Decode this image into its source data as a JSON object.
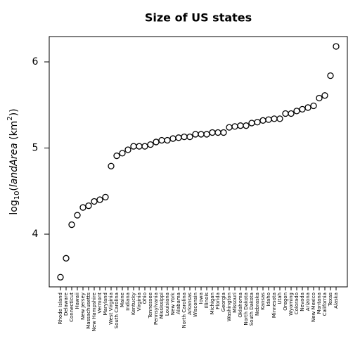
{
  "chart_data": {
    "type": "scatter",
    "title": "Size of US states",
    "y_label": [
      "log",
      "10",
      "(",
      "landArea",
      " (km",
      "2",
      "))"
    ],
    "categories": [
      "Rhode Island",
      "Delaware",
      "Connecticut",
      "Hawaii",
      "New Jersey",
      "Massachusetts",
      "New Hampshire",
      "Vermont",
      "Maryland",
      "West Virginia",
      "South Carolina",
      "Maine",
      "Indiana",
      "Kentucky",
      "Virginia",
      "Ohio",
      "Tennessee",
      "Pennsylvania",
      "Mississippi",
      "Louisiana",
      "New York",
      "Alabama",
      "North Carolina",
      "Arkansas",
      "Wisconsin",
      "Iowa",
      "Illinois",
      "Michigan",
      "Florida",
      "Georgia",
      "Washington",
      "Missouri",
      "Oklahoma",
      "North Dakota",
      "South Dakota",
      "Nebraska",
      "Kansas",
      "Idaho",
      "Minnesota",
      "Utah",
      "Oregon",
      "Wyoming",
      "Colorado",
      "Nevada",
      "Arizona",
      "New Mexico",
      "Montana",
      "California",
      "Texas",
      "Alaska"
    ],
    "values": [
      3.5,
      3.72,
      4.11,
      4.22,
      4.31,
      4.33,
      4.38,
      4.4,
      4.43,
      4.79,
      4.91,
      4.94,
      4.98,
      5.02,
      5.02,
      5.02,
      5.04,
      5.07,
      5.09,
      5.09,
      5.11,
      5.12,
      5.13,
      5.13,
      5.16,
      5.16,
      5.16,
      5.18,
      5.18,
      5.18,
      5.24,
      5.25,
      5.26,
      5.26,
      5.29,
      5.3,
      5.32,
      5.33,
      5.34,
      5.34,
      5.4,
      5.4,
      5.43,
      5.45,
      5.47,
      5.49,
      5.58,
      5.61,
      5.84,
      6.18
    ],
    "color": "#000000",
    "ylim": [
      3.388,
      6.294
    ],
    "yticks": [
      4,
      5,
      6
    ]
  }
}
